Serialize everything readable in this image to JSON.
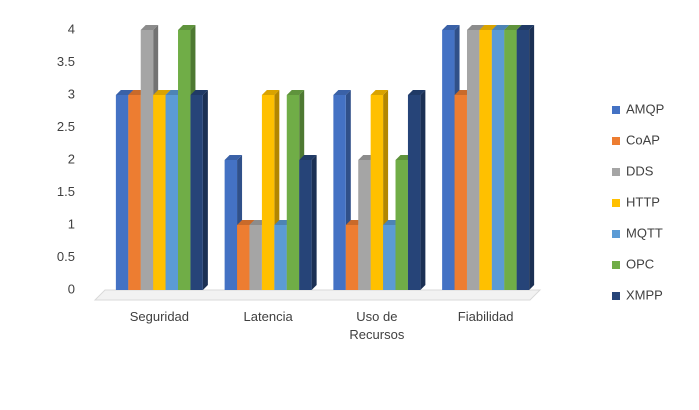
{
  "chart_data": {
    "type": "bar",
    "categories": [
      "Seguridad",
      "Latencia",
      "Uso de Recursos",
      "Fiabilidad"
    ],
    "series": [
      {
        "name": "AMQP",
        "color": "#4472c4",
        "values": [
          3,
          2,
          3,
          4
        ]
      },
      {
        "name": "CoAP",
        "color": "#ed7d31",
        "values": [
          3,
          1,
          1,
          3
        ]
      },
      {
        "name": "DDS",
        "color": "#a5a5a5",
        "values": [
          4,
          1,
          2,
          4
        ]
      },
      {
        "name": "HTTP",
        "color": "#ffc000",
        "values": [
          3,
          3,
          3,
          4
        ]
      },
      {
        "name": "MQTT",
        "color": "#5b9bd5",
        "values": [
          3,
          1,
          1,
          4
        ]
      },
      {
        "name": "OPC",
        "color": "#70ad47",
        "values": [
          4,
          3,
          2,
          4
        ]
      },
      {
        "name": "XMPP",
        "color": "#264478",
        "values": [
          3,
          2,
          3,
          4
        ]
      }
    ],
    "ylim": [
      0,
      4
    ],
    "yticks": [
      0,
      0.5,
      1,
      1.5,
      2,
      2.5,
      3,
      3.5,
      4
    ],
    "grid": false,
    "legend": "right"
  }
}
